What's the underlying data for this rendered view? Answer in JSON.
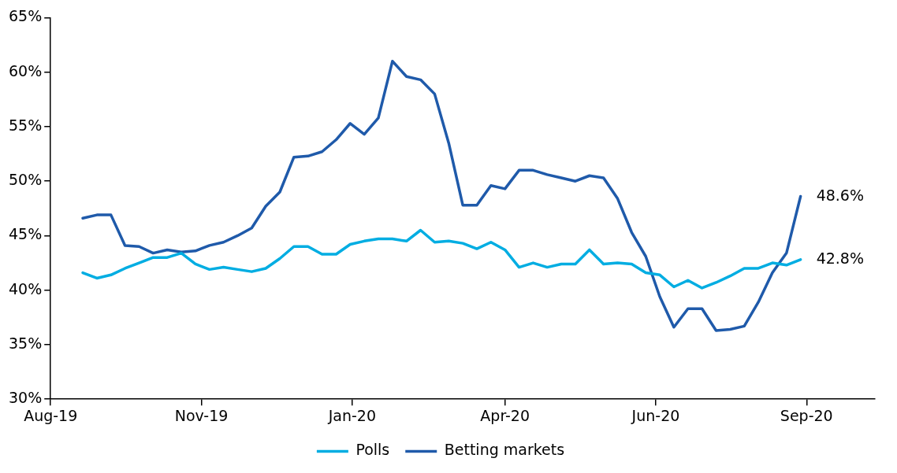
{
  "chart_data": {
    "type": "line",
    "x": [
      "2019-09-10",
      "2019-09-17",
      "2019-09-24",
      "2019-10-01",
      "2019-10-08",
      "2019-10-15",
      "2019-10-22",
      "2019-10-29",
      "2019-11-05",
      "2019-11-12",
      "2019-11-19",
      "2019-11-26",
      "2019-12-03",
      "2019-12-10",
      "2019-12-17",
      "2019-12-24",
      "2019-12-31",
      "2020-01-07",
      "2020-01-14",
      "2020-01-21",
      "2020-01-28",
      "2020-02-04",
      "2020-02-11",
      "2020-02-18",
      "2020-02-25",
      "2020-03-03",
      "2020-03-10",
      "2020-03-17",
      "2020-03-24",
      "2020-03-31",
      "2020-04-07",
      "2020-04-14",
      "2020-04-21",
      "2020-04-28",
      "2020-05-05",
      "2020-05-12",
      "2020-05-19",
      "2020-05-26",
      "2020-06-02",
      "2020-06-09",
      "2020-06-16",
      "2020-06-23",
      "2020-06-30",
      "2020-07-07",
      "2020-07-14",
      "2020-07-21",
      "2020-07-28",
      "2020-08-04",
      "2020-08-11",
      "2020-08-18",
      "2020-08-25",
      "2020-09-01"
    ],
    "series": [
      {
        "name": "Polls",
        "color": "#00ade2",
        "values": [
          41.6,
          41.1,
          41.4,
          42.0,
          42.5,
          43.0,
          43.0,
          43.4,
          42.4,
          41.9,
          42.1,
          41.9,
          41.7,
          42.0,
          42.9,
          44.0,
          44.0,
          43.3,
          43.3,
          44.2,
          44.5,
          44.7,
          44.7,
          44.5,
          45.5,
          44.4,
          44.5,
          44.3,
          43.8,
          44.4,
          43.7,
          42.1,
          42.5,
          42.1,
          42.4,
          42.4,
          43.7,
          42.4,
          42.5,
          42.4,
          41.6,
          41.4,
          40.3,
          40.9,
          40.2,
          40.7,
          41.3,
          42.0,
          42.0,
          42.5,
          42.3,
          42.8
        ]
      },
      {
        "name": "Betting markets",
        "color": "#1f5aaa",
        "values": [
          46.6,
          46.9,
          46.9,
          44.1,
          44.0,
          43.4,
          43.7,
          43.5,
          43.6,
          44.1,
          44.4,
          45.0,
          45.7,
          47.7,
          49.0,
          52.2,
          52.3,
          52.7,
          53.8,
          55.3,
          54.3,
          55.8,
          61.0,
          59.6,
          59.3,
          58.0,
          53.5,
          47.8,
          47.8,
          49.6,
          49.3,
          51.0,
          51.0,
          50.6,
          50.3,
          50.0,
          50.5,
          50.3,
          48.4,
          45.3,
          43.1,
          39.4,
          36.6,
          38.3,
          38.3,
          36.3,
          36.4,
          36.7,
          38.9,
          41.6,
          43.4,
          48.6
        ]
      }
    ],
    "xlim": [
      "2019-08-25",
      "2020-10-08"
    ],
    "xticks": [
      {
        "value": "2019-08-25",
        "label": "Aug-19"
      },
      {
        "value": "2019-11-08",
        "label": "Nov-19"
      },
      {
        "value": "2020-01-22",
        "label": "Jan-20"
      },
      {
        "value": "2020-04-07",
        "label": "Apr-20"
      },
      {
        "value": "2020-06-21",
        "label": "Jun-20"
      },
      {
        "value": "2020-09-04",
        "label": "Sep-20"
      }
    ],
    "ylim": [
      30,
      65
    ],
    "yticks": [
      {
        "value": 30,
        "label": "30%"
      },
      {
        "value": 35,
        "label": "35%"
      },
      {
        "value": 40,
        "label": "40%"
      },
      {
        "value": 45,
        "label": "45%"
      },
      {
        "value": 50,
        "label": "50%"
      },
      {
        "value": 55,
        "label": "55%"
      },
      {
        "value": 60,
        "label": "60%"
      },
      {
        "value": 65,
        "label": "65%"
      }
    ],
    "annotations": [
      {
        "text": "48.6%",
        "x": "2020-09-01",
        "y": 48.6
      },
      {
        "text": "42.8%",
        "x": "2020-09-01",
        "y": 42.8
      }
    ],
    "legend": "bottom",
    "grid": false,
    "marker": "none",
    "line_style": "solid"
  }
}
